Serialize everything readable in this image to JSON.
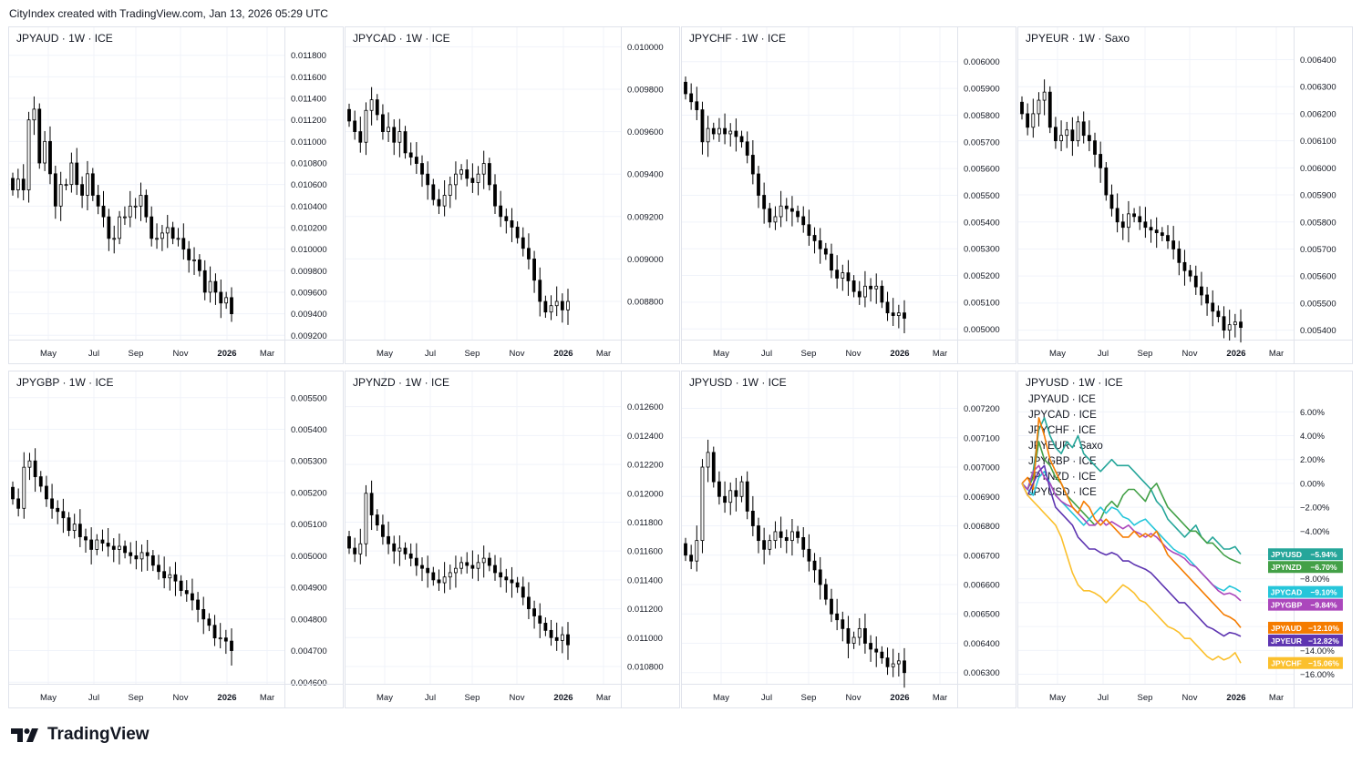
{
  "header": {
    "text": "CityIndex created with TradingView.com, Jan 13, 2026 05:29 UTC"
  },
  "footer": {
    "brand": "TradingView",
    "logo_icon": "tradingview-logo-icon"
  },
  "colors": {
    "up": "#ffffff",
    "down": "#000000",
    "grid": "#f0f3fa",
    "text": "#131722"
  },
  "time_labels": [
    "May",
    "Jul",
    "Sep",
    "Nov",
    "2026",
    "Mar"
  ],
  "chart_data": [
    {
      "type": "candlestick",
      "title": "JPYAUD · 1W · ICE",
      "ylim": [
        0.00916,
        0.01184
      ],
      "yticks": [
        "0.011800",
        "0.011600",
        "0.011400",
        "0.011200",
        "0.011000",
        "0.010800",
        "0.010600",
        "0.010400",
        "0.010200",
        "0.010000",
        "0.009800",
        "0.009600",
        "0.009400",
        "0.009200"
      ],
      "closes": [
        0.01055,
        0.01065,
        0.01055,
        0.0112,
        0.0113,
        0.0108,
        0.011,
        0.0107,
        0.0104,
        0.0106,
        0.0106,
        0.0108,
        0.0106,
        0.0105,
        0.0107,
        0.0105,
        0.0104,
        0.0103,
        0.0101,
        0.0101,
        0.0103,
        0.0103,
        0.0104,
        0.0104,
        0.0105,
        0.0103,
        0.0101,
        0.0101,
        0.01015,
        0.0102,
        0.0101,
        0.0101,
        0.01,
        0.0099,
        0.0099,
        0.0098,
        0.0096,
        0.0097,
        0.0096,
        0.0095,
        0.00955,
        0.0094
      ]
    },
    {
      "type": "candlestick",
      "title": "JPYCAD · 1W · ICE",
      "ylim": [
        0.00862,
        0.00998
      ],
      "yticks": [
        "0.010000",
        "0.009800",
        "0.009600",
        "0.009400",
        "0.009200",
        "0.009000",
        "0.008800"
      ],
      "closes": [
        0.00965,
        0.0096,
        0.00955,
        0.0097,
        0.00975,
        0.00968,
        0.0096,
        0.00962,
        0.00955,
        0.0096,
        0.0095,
        0.00948,
        0.00945,
        0.0094,
        0.00935,
        0.00928,
        0.00925,
        0.0093,
        0.00935,
        0.0094,
        0.00942,
        0.00938,
        0.00936,
        0.0094,
        0.00945,
        0.00935,
        0.00925,
        0.0092,
        0.00918,
        0.00915,
        0.0091,
        0.00905,
        0.009,
        0.0089,
        0.0088,
        0.00875,
        0.00878,
        0.0088,
        0.00876,
        0.0088
      ]
    },
    {
      "type": "candlestick",
      "title": "JPYCHF · 1W · ICE",
      "ylim": [
        0.00496,
        0.00604
      ],
      "yticks": [
        "0.006000",
        "0.005900",
        "0.005800",
        "0.005700",
        "0.005600",
        "0.005500",
        "0.005400",
        "0.005300",
        "0.005200",
        "0.005100",
        "0.005000"
      ],
      "closes": [
        0.00588,
        0.00585,
        0.00582,
        0.0057,
        0.00575,
        0.00573,
        0.00575,
        0.00573,
        0.00574,
        0.00572,
        0.0057,
        0.00565,
        0.00558,
        0.0055,
        0.00545,
        0.0054,
        0.00542,
        0.00546,
        0.00545,
        0.00544,
        0.00542,
        0.00539,
        0.00535,
        0.00533,
        0.0053,
        0.00528,
        0.00522,
        0.00519,
        0.00521,
        0.00518,
        0.00514,
        0.00512,
        0.00516,
        0.00515,
        0.00516,
        0.0051,
        0.00506,
        0.00505,
        0.00506,
        0.00504
      ]
    },
    {
      "type": "candlestick",
      "title": "JPYEUR · 1W · Saxo",
      "ylim": [
        0.005365,
        0.006432
      ],
      "yticks": [
        "0.006400",
        "0.006300",
        "0.006200",
        "0.006100",
        "0.006000",
        "0.005900",
        "0.005800",
        "0.005700",
        "0.005600",
        "0.005500",
        "0.005400"
      ],
      "closes": [
        0.0062,
        0.00615,
        0.0062,
        0.00625,
        0.00628,
        0.00615,
        0.0061,
        0.00612,
        0.00614,
        0.0061,
        0.00617,
        0.00612,
        0.0061,
        0.00605,
        0.006,
        0.0059,
        0.00585,
        0.0058,
        0.00578,
        0.00583,
        0.00582,
        0.0058,
        0.00578,
        0.00577,
        0.00576,
        0.00575,
        0.00573,
        0.0057,
        0.00565,
        0.00562,
        0.0056,
        0.00556,
        0.00553,
        0.0055,
        0.00547,
        0.00545,
        0.0054,
        0.00542,
        0.00543,
        0.00541
      ]
    },
    {
      "type": "candlestick",
      "title": "JPYGBP · 1W · ICE",
      "ylim": [
        0.004595,
        0.005508
      ],
      "yticks": [
        "0.005500",
        "0.005400",
        "0.005300",
        "0.005200",
        "0.005100",
        "0.005000",
        "0.004900",
        "0.004800",
        "0.004700",
        "0.004600"
      ],
      "closes": [
        0.00518,
        0.00515,
        0.00528,
        0.0053,
        0.00525,
        0.00522,
        0.00518,
        0.00515,
        0.00514,
        0.00512,
        0.00508,
        0.0051,
        0.00506,
        0.00505,
        0.00502,
        0.00505,
        0.00504,
        0.00503,
        0.00502,
        0.00503,
        0.00501,
        0.005,
        0.00499,
        0.00501,
        0.005,
        0.00497,
        0.00495,
        0.00493,
        0.00494,
        0.00492,
        0.00489,
        0.00488,
        0.00486,
        0.00483,
        0.0048,
        0.00478,
        0.00474,
        0.00474,
        0.00473,
        0.0047
      ]
    },
    {
      "type": "candlestick",
      "title": "JPYNZD · 1W · ICE",
      "ylim": [
        0.01068,
        0.01268
      ],
      "yticks": [
        "0.012600",
        "0.012400",
        "0.012200",
        "0.012000",
        "0.011800",
        "0.011600",
        "0.011400",
        "0.011200",
        "0.011000",
        "0.010800"
      ],
      "closes": [
        0.01162,
        0.01158,
        0.01165,
        0.012,
        0.01185,
        0.01178,
        0.0117,
        0.01165,
        0.0116,
        0.01162,
        0.01158,
        0.01155,
        0.0115,
        0.01148,
        0.01145,
        0.0114,
        0.01138,
        0.01142,
        0.01145,
        0.01148,
        0.01152,
        0.0115,
        0.01148,
        0.01152,
        0.01155,
        0.0115,
        0.01145,
        0.01142,
        0.0114,
        0.01138,
        0.01135,
        0.01128,
        0.0112,
        0.01115,
        0.0111,
        0.01105,
        0.011,
        0.01098,
        0.01102,
        0.01095
      ]
    },
    {
      "type": "candlestick",
      "title": "JPYUSD · 1W · ICE",
      "ylim": [
        0.006262,
        0.007245
      ],
      "yticks": [
        "0.007200",
        "0.007100",
        "0.007000",
        "0.006900",
        "0.006800",
        "0.006700",
        "0.006600",
        "0.006500",
        "0.006400",
        "0.006300"
      ],
      "closes": [
        0.0067,
        0.00668,
        0.00675,
        0.007,
        0.00705,
        0.00695,
        0.0069,
        0.00688,
        0.00692,
        0.0069,
        0.00695,
        0.00685,
        0.0068,
        0.00675,
        0.00672,
        0.00675,
        0.00678,
        0.00676,
        0.00675,
        0.00678,
        0.00676,
        0.00672,
        0.00668,
        0.00665,
        0.0066,
        0.00655,
        0.0065,
        0.00648,
        0.00645,
        0.0064,
        0.00642,
        0.00645,
        0.0064,
        0.00638,
        0.00637,
        0.00635,
        0.00632,
        0.00633,
        0.00634,
        0.0063
      ]
    },
    {
      "type": "line",
      "title": "JPYUSD · 1W · ICE",
      "ylim": [
        -16.8,
        7.4
      ],
      "yticks": [
        "6.00%",
        "4.00%",
        "2.00%",
        "0.00%",
        "−2.00%",
        "−4.00%",
        "−6.00%",
        "−8.00%",
        "−10.00%",
        "−12.00%",
        "−14.00%",
        "−16.00%"
      ],
      "legend": [
        "JPYAUD · ICE",
        "JPYCAD · ICE",
        "JPYCHF · ICE",
        "JPYEUR · Saxo",
        "JPYGBP · ICE",
        "JPYNZD · ICE",
        "JPYUSD · ICE"
      ],
      "series": [
        {
          "name": "JPYUSD",
          "color": "#26a69a",
          "final_label": "−5.94%",
          "values": [
            0,
            -0.5,
            1,
            4.5,
            5.5,
            4,
            3,
            2.5,
            3.5,
            3,
            4,
            2.5,
            2,
            1.5,
            1,
            1.5,
            2,
            1.5,
            1.5,
            1.5,
            1,
            0.5,
            0,
            -0.5,
            -1.5,
            -2,
            -3,
            -3.5,
            -4,
            -4.5,
            -4,
            -3.5,
            -4.5,
            -5,
            -4.5,
            -5,
            -5.5,
            -5.5,
            -5.3,
            -5.94
          ]
        },
        {
          "name": "JPYNZD",
          "color": "#43a047",
          "final_label": "−6.70%",
          "values": [
            0,
            -0.5,
            0.5,
            3.5,
            2,
            1.5,
            0.5,
            0,
            -1,
            -1.5,
            -2,
            -2.5,
            -3,
            -3.5,
            -3,
            -2,
            -1.5,
            -2,
            -1,
            -0.5,
            -0.5,
            -1,
            -1.5,
            -0.5,
            0,
            -1,
            -2,
            -2.5,
            -3,
            -3.5,
            -4,
            -4,
            -4.5,
            -5,
            -5,
            -5.5,
            -6,
            -6.3,
            -6.5,
            -6.7
          ]
        },
        {
          "name": "JPYCAD",
          "color": "#26c6da",
          "final_label": "−9.10%",
          "values": [
            0,
            -0.5,
            -1,
            0.5,
            1,
            0,
            -1,
            -1.5,
            -2,
            -2.5,
            -3,
            -3.5,
            -3,
            -2.5,
            -2,
            -2.5,
            -2,
            -2.2,
            -2.8,
            -3,
            -3.5,
            -3.2,
            -3,
            -3.5,
            -4,
            -4.5,
            -5,
            -5.5,
            -5.8,
            -6,
            -6.5,
            -7,
            -7.5,
            -8,
            -8.5,
            -8.8,
            -9,
            -8.6,
            -8.8,
            -9.1
          ]
        },
        {
          "name": "JPYGBP",
          "color": "#ab47bc",
          "final_label": "−9.84%",
          "values": [
            0,
            -0.5,
            1,
            1.5,
            0.5,
            0,
            -1,
            -1.5,
            -1.8,
            -2,
            -2.5,
            -3,
            -3.5,
            -3.5,
            -3,
            -3.5,
            -3.2,
            -3.5,
            -3.8,
            -3.5,
            -4,
            -4.2,
            -4.5,
            -4.2,
            -4.5,
            -5,
            -5.5,
            -5.8,
            -6,
            -6.3,
            -6.8,
            -7,
            -7.5,
            -8,
            -8.5,
            -9,
            -9.3,
            -9.2,
            -9.4,
            -9.84
          ]
        },
        {
          "name": "JPYAUD",
          "color": "#f57c00",
          "final_label": "−12.10%",
          "values": [
            0,
            0.5,
            -0.5,
            5.5,
            4,
            2,
            1,
            0,
            -1,
            -2,
            -2.5,
            -1.5,
            -2,
            -3,
            -3.5,
            -3,
            -3.5,
            -4,
            -4.5,
            -4.5,
            -4,
            -4.5,
            -4.2,
            -4.5,
            -4,
            -5,
            -6,
            -6.5,
            -7,
            -7.5,
            -8,
            -8.5,
            -9,
            -9.5,
            -10,
            -10.5,
            -11,
            -11.2,
            -11.5,
            -12.1
          ]
        },
        {
          "name": "JPYEUR",
          "color": "#5e35b1",
          "final_label": "−12.82%",
          "values": [
            0,
            -1,
            0,
            1,
            1.5,
            -0.5,
            -2,
            -2.5,
            -3,
            -3.5,
            -4.5,
            -5,
            -5.5,
            -5.5,
            -5.8,
            -6,
            -5.8,
            -6,
            -6.5,
            -6.5,
            -6.8,
            -7,
            -7.2,
            -7.5,
            -8,
            -8.5,
            -9,
            -9.5,
            -10,
            -10,
            -10.5,
            -11,
            -11.5,
            -12,
            -12.2,
            -12.5,
            -12.8,
            -12.5,
            -12.6,
            -12.82
          ]
        },
        {
          "name": "JPYCHF",
          "color": "#fbc02d",
          "final_label": "−15.06%",
          "values": [
            0,
            -1,
            -1.5,
            -2,
            -2.5,
            -3,
            -3.5,
            -4.5,
            -6,
            -7.5,
            -8.5,
            -9,
            -9,
            -9.2,
            -9.5,
            -10,
            -9.5,
            -9,
            -8.5,
            -8.8,
            -9.2,
            -9.8,
            -10,
            -10.5,
            -11,
            -11.5,
            -12,
            -12.2,
            -12.5,
            -13,
            -13,
            -13.5,
            -14,
            -14.5,
            -14.8,
            -14.5,
            -14.8,
            -14.6,
            -14.2,
            -15.06
          ]
        }
      ]
    }
  ]
}
